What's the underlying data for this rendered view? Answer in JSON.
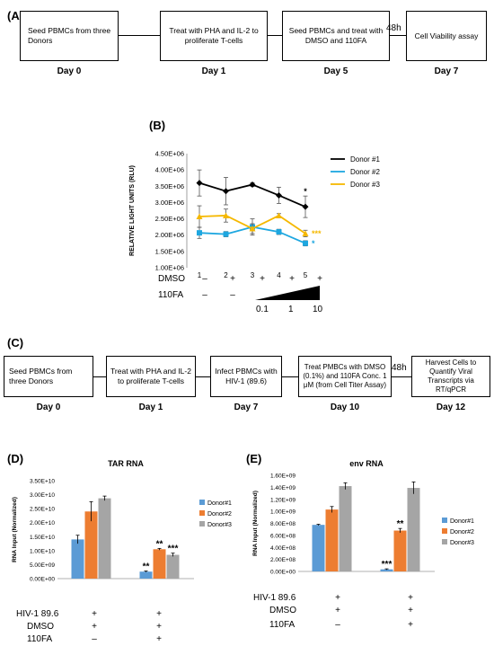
{
  "panelA": {
    "label": "(A)",
    "boxes": [
      "Seed PBMCs from three Donors",
      "Treat with PHA and IL-2 to proliferate T-cells",
      "Seed PBMCs and treat with DMSO and 110FA",
      "Cell Viability assay"
    ],
    "days": [
      "Day 0",
      "Day 1",
      "Day 5",
      "Day 7"
    ],
    "gap": "48h"
  },
  "panelC": {
    "label": "(C)",
    "boxes": [
      "Seed PBMCs from three Donors",
      "Treat with PHA and IL-2 to proliferate T-cells",
      "Infect PBMCs with HIV-1 (89.6)",
      "Treat PMBCs with  DMSO (0.1%) and 110FA Conc. 1 μM (from Cell Titer Assay)",
      "Harvest Cells to Quantify Viral Transcripts via RT/qPCR"
    ],
    "days": [
      "Day 0",
      "Day 1",
      "Day 7",
      "Day 10",
      "Day 12"
    ],
    "gap": "48h"
  },
  "colors": {
    "donor1_line": "#000000",
    "donor2_line": "#1ea7e0",
    "donor3_line": "#f5b800",
    "donor1_bar": "#5b9bd5",
    "donor2_bar": "#ed7d31",
    "donor3_bar": "#a5a5a5"
  },
  "chart_data": [
    {
      "panel": "(B)",
      "type": "line",
      "ylabel": "RELATIVE LIGHT UNITS (RLU)",
      "x": [
        1,
        2,
        3,
        4,
        5
      ],
      "x_tick_labels": [
        "1",
        "2",
        "3",
        "4",
        "5"
      ],
      "y_tick_labels": [
        "1.00E+06",
        "1.50E+06",
        "2.00E+06",
        "2.50E+06",
        "3.00E+06",
        "3.50E+06",
        "4.00E+06",
        "4.50E+06"
      ],
      "ylim": [
        1000000,
        4500000
      ],
      "legend_position": "right",
      "series": [
        {
          "name": "Donor #1",
          "values": [
            3600000,
            3350000,
            3550000,
            3220000,
            2870000
          ],
          "errors": [
            400000,
            420000,
            60000,
            250000,
            330000
          ],
          "marker": "diamond",
          "annotation_last": "*"
        },
        {
          "name": "Donor #2",
          "values": [
            2070000,
            2030000,
            2250000,
            2100000,
            1750000
          ],
          "errors": [
            170000,
            80000,
            250000,
            80000,
            80000
          ],
          "marker": "square",
          "annotation_last": "*"
        },
        {
          "name": "Donor #3",
          "values": [
            2570000,
            2600000,
            2200000,
            2600000,
            2050000
          ],
          "errors": [
            330000,
            200000,
            150000,
            60000,
            100000
          ],
          "marker": "triangle",
          "annotation_last": "***"
        }
      ],
      "treatment_rows": {
        "dmso_label": "DMSO",
        "dmso": [
          "–",
          "+",
          "+",
          "+",
          "+"
        ],
        "fa_label": "110FA",
        "fa": [
          "–",
          "–"
        ],
        "concentrations": [
          "0.1",
          "1",
          "10"
        ]
      }
    },
    {
      "panel": "(D)",
      "type": "bar",
      "title": "TAR RNA",
      "ylabel": "RNA Input (Normalized)",
      "y_tick_labels": [
        "0.00E+00",
        "5.00E+09",
        "1.00E+10",
        "1.50E+10",
        "2.00E+10",
        "2.50E+10",
        "3.00E+10",
        "3.50E+10"
      ],
      "ylim": [
        0,
        35000000000
      ],
      "legend_position": "right",
      "series": [
        {
          "name": "Donor#1",
          "values": [
            14000000000,
            2500000000
          ],
          "errors": [
            1500000000,
            200000000
          ],
          "annotations": [
            "",
            "**"
          ]
        },
        {
          "name": "Donor#2",
          "values": [
            24000000000,
            10500000000
          ],
          "errors": [
            3500000000,
            300000000
          ],
          "annotations": [
            "",
            "**"
          ]
        },
        {
          "name": "Donor#3",
          "values": [
            28700000000,
            8500000000
          ],
          "errors": [
            800000000,
            600000000
          ],
          "annotations": [
            "",
            "***"
          ]
        }
      ],
      "treatment_rows": {
        "labels": [
          "HIV-1 89.6",
          "DMSO",
          "110FA"
        ],
        "group1": [
          "+",
          "+",
          "–"
        ],
        "group2": [
          "+",
          "+",
          "+"
        ]
      }
    },
    {
      "panel": "(E)",
      "type": "bar",
      "title": "env RNA",
      "ylabel": "RNA Input (Normalized)",
      "y_tick_labels": [
        "0.00E+00",
        "2.00E+08",
        "4.00E+08",
        "6.00E+08",
        "8.00E+08",
        "1.00E+09",
        "1.20E+09",
        "1.40E+09",
        "1.60E+09"
      ],
      "ylim": [
        0,
        1600000000
      ],
      "legend_position": "right",
      "series": [
        {
          "name": "Donor#1",
          "values": [
            775000000,
            35000000
          ],
          "errors": [
            10000000,
            8000000
          ],
          "annotations": [
            "",
            "***"
          ]
        },
        {
          "name": "Donor#2",
          "values": [
            1030000000,
            680000000
          ],
          "errors": [
            50000000,
            35000000
          ],
          "annotations": [
            "",
            "**"
          ]
        },
        {
          "name": "Donor#3",
          "values": [
            1420000000,
            1390000000
          ],
          "errors": [
            55000000,
            100000000
          ],
          "annotations": [
            "",
            ""
          ]
        }
      ],
      "treatment_rows": {
        "labels": [
          "HIV-1 89.6",
          "DMSO",
          "110FA"
        ],
        "group1": [
          "+",
          "+",
          "–"
        ],
        "group2": [
          "+",
          "+",
          "+"
        ]
      }
    }
  ]
}
